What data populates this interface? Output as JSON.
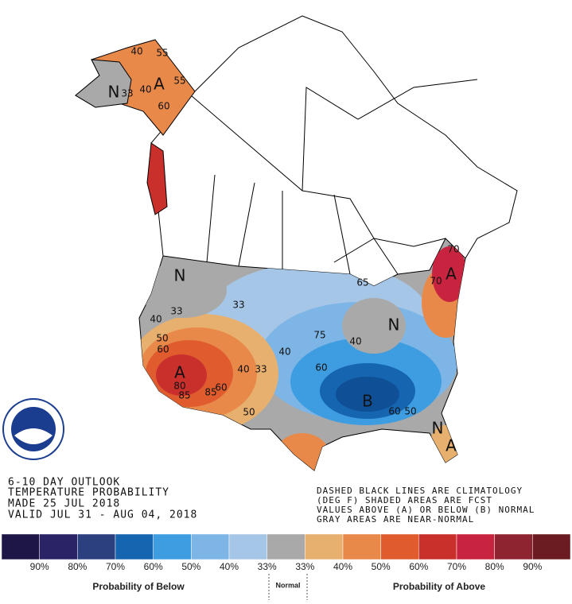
{
  "map_labels": [
    "N",
    "33",
    "40",
    "A",
    "55",
    "40",
    "55",
    "60",
    "N",
    "33",
    "40",
    "50",
    "60",
    "A",
    "80",
    "85",
    "85",
    "60",
    "50",
    "40",
    "33",
    "33",
    "40",
    "75",
    "60",
    "40",
    "B",
    "60",
    "50",
    "A",
    "70",
    "70",
    "65",
    "N",
    "N",
    "A"
  ],
  "outlook_text": [
    "6-10 DAY OUTLOOK",
    "TEMPERATURE PROBABILITY",
    "MADE  25 JUL 2018",
    "VALID  JUL 31 - AUG 04, 2018"
  ],
  "notes": [
    "DASHED BLACK LINES ARE CLIMATOLOGY",
    "(DEG F) SHADED AREAS ARE FCST",
    "VALUES ABOVE (A) OR BELOW (B) NORMAL",
    "GRAY AREAS ARE NEAR-NORMAL"
  ],
  "legend": {
    "colors": [
      "#1d1646",
      "#2a2466",
      "#2c3f7e",
      "#1565b0",
      "#3d9de0",
      "#7db6e6",
      "#a6c6e7",
      "#a9a9a9",
      "#e8b06e",
      "#e8894a",
      "#e05c2f",
      "#c9302c",
      "#c8243f",
      "#8e2430",
      "#6a1c22"
    ],
    "labels": [
      "90%",
      "80%",
      "70%",
      "60%",
      "50%",
      "40%",
      "33%",
      "33%",
      "40%",
      "50%",
      "60%",
      "70%",
      "80%",
      "90%"
    ],
    "below_title": "Probability of Below",
    "normal": "Normal",
    "above_title": "Probability of Above"
  }
}
